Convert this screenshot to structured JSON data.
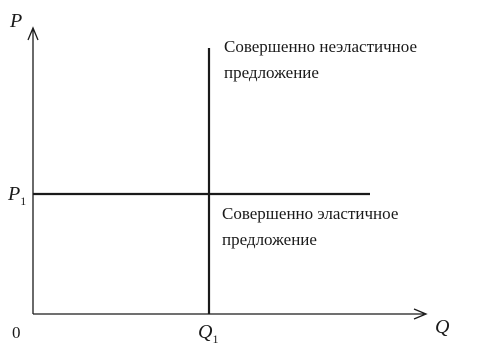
{
  "axes": {
    "y_label": "P",
    "x_label": "Q",
    "origin_label": "0"
  },
  "ticks": {
    "price": {
      "base": "P",
      "sub": "1"
    },
    "quantity": {
      "base": "Q",
      "sub": "1"
    }
  },
  "curves": {
    "inelastic": {
      "label_line1": "Совершенно неэластичное",
      "label_line2": "предложение"
    },
    "elastic": {
      "label_line1": "Совершенно эластичное",
      "label_line2": "предложение"
    }
  },
  "colors": {
    "line": "#1a1a1a",
    "text": "#1a1a1a"
  }
}
